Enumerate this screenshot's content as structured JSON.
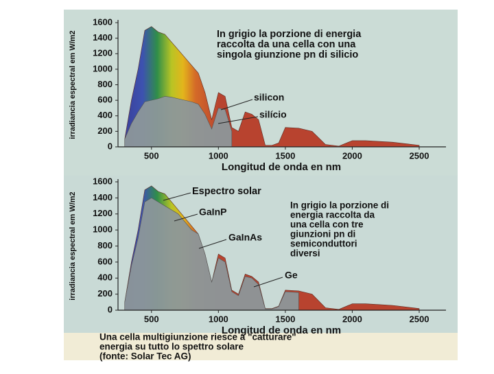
{
  "chart_data": [
    {
      "type": "area",
      "x": [
        300,
        350,
        400,
        450,
        500,
        550,
        600,
        650,
        700,
        750,
        800,
        850,
        900,
        950,
        1000,
        1050,
        1100,
        1150,
        1200,
        1250,
        1300,
        1350,
        1400,
        1450,
        1500,
        1600,
        1700,
        1800,
        1900,
        2000,
        2100,
        2200,
        2300,
        2400,
        2500
      ],
      "series": [
        {
          "color": "#b8432f",
          "values": [
            100,
            600,
            1000,
            1500,
            1550,
            1480,
            1450,
            1350,
            1250,
            1150,
            1050,
            950,
            700,
            350,
            700,
            650,
            250,
            200,
            450,
            420,
            350,
            20,
            20,
            50,
            250,
            240,
            200,
            30,
            10,
            80,
            80,
            70,
            60,
            40,
            20
          ]
        },
        {
          "color": "#8c979a",
          "values": [
            100,
            300,
            450,
            580,
            600,
            620,
            650,
            640,
            620,
            600,
            580,
            550,
            420,
            230,
            500,
            480,
            200,
            null,
            null,
            null,
            null,
            null,
            null,
            null,
            null,
            null,
            null,
            null,
            null,
            null,
            null,
            null,
            null,
            null,
            null
          ]
        }
      ],
      "xlim": [
        250,
        2700
      ],
      "ylim": [
        0,
        1600
      ],
      "xticks": [
        500,
        1000,
        1500,
        2000,
        2500
      ],
      "yticks": [
        0,
        200,
        400,
        600,
        800,
        1000,
        1200,
        1400,
        1600
      ],
      "xlabel": "Longitud de onda en nm",
      "ylabel": "irradiancia espectral em W/m2",
      "annotations": [
        [
          "In grigio la porzione di energia",
          "raccolta da una cella con una",
          "singola giunzione pn di silicio"
        ],
        [
          "silicon"
        ],
        [
          "silício"
        ]
      ]
    },
    {
      "type": "area",
      "x": [
        300,
        350,
        400,
        450,
        500,
        550,
        600,
        650,
        700,
        750,
        800,
        850,
        900,
        950,
        1000,
        1050,
        1100,
        1150,
        1200,
        1250,
        1300,
        1350,
        1400,
        1450,
        1500,
        1600,
        1700,
        1800,
        1900,
        2000,
        2100,
        2200,
        2300,
        2400,
        2500
      ],
      "series": [
        {
          "color": "#b8432f",
          "values": [
            100,
            600,
            1000,
            1500,
            1550,
            1480,
            1450,
            1350,
            1250,
            1150,
            1050,
            950,
            700,
            350,
            700,
            650,
            250,
            200,
            450,
            420,
            350,
            20,
            20,
            50,
            250,
            240,
            200,
            30,
            10,
            80,
            80,
            70,
            60,
            40,
            20
          ]
        },
        {
          "color": "#8c979a",
          "values": [
            100,
            550,
            900,
            1350,
            1400,
            1350,
            1300,
            1250,
            1200,
            1100,
            1000,
            950,
            700,
            350,
            650,
            600,
            230,
            180,
            420,
            400,
            320,
            15,
            15,
            45,
            230,
            220,
            null,
            null,
            null,
            null,
            null,
            null,
            null,
            null,
            null
          ]
        }
      ],
      "xlim": [
        250,
        2700
      ],
      "ylim": [
        0,
        1600
      ],
      "xticks": [
        500,
        1000,
        1500,
        2000,
        2500
      ],
      "yticks": [
        0,
        200,
        400,
        600,
        800,
        1000,
        1200,
        1400,
        1600
      ],
      "xlabel": "Longitud de onda en nm",
      "ylabel": "irradiancia espectral em W/m2",
      "annotations": [
        [
          "Espectro solar"
        ],
        [
          "GaInP"
        ],
        [
          "GaInAs"
        ],
        [
          "Ge"
        ],
        [
          "In grigio la porzione di",
          "energia raccolta da",
          "una cella con tre",
          "giunzioni pn di",
          "semiconduttori",
          "diversi"
        ]
      ]
    }
  ],
  "caption": [
    "Una cella multigiunzione riesce a \"catturare\"",
    "energia su tutto lo spettro solare",
    "(fonte: Solar Tec AG)"
  ]
}
